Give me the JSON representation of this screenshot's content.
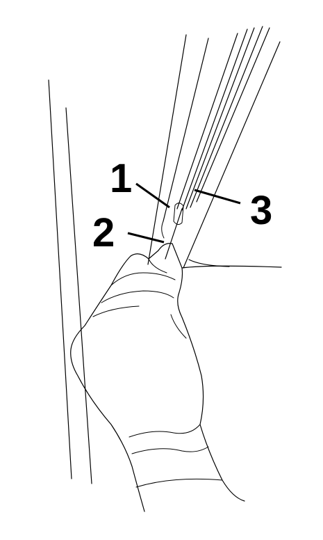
{
  "callouts": [
    {
      "number": "1"
    },
    {
      "number": "2"
    },
    {
      "number": "3"
    }
  ],
  "colors": {
    "background": "#ffffff",
    "ink": "#000000"
  }
}
